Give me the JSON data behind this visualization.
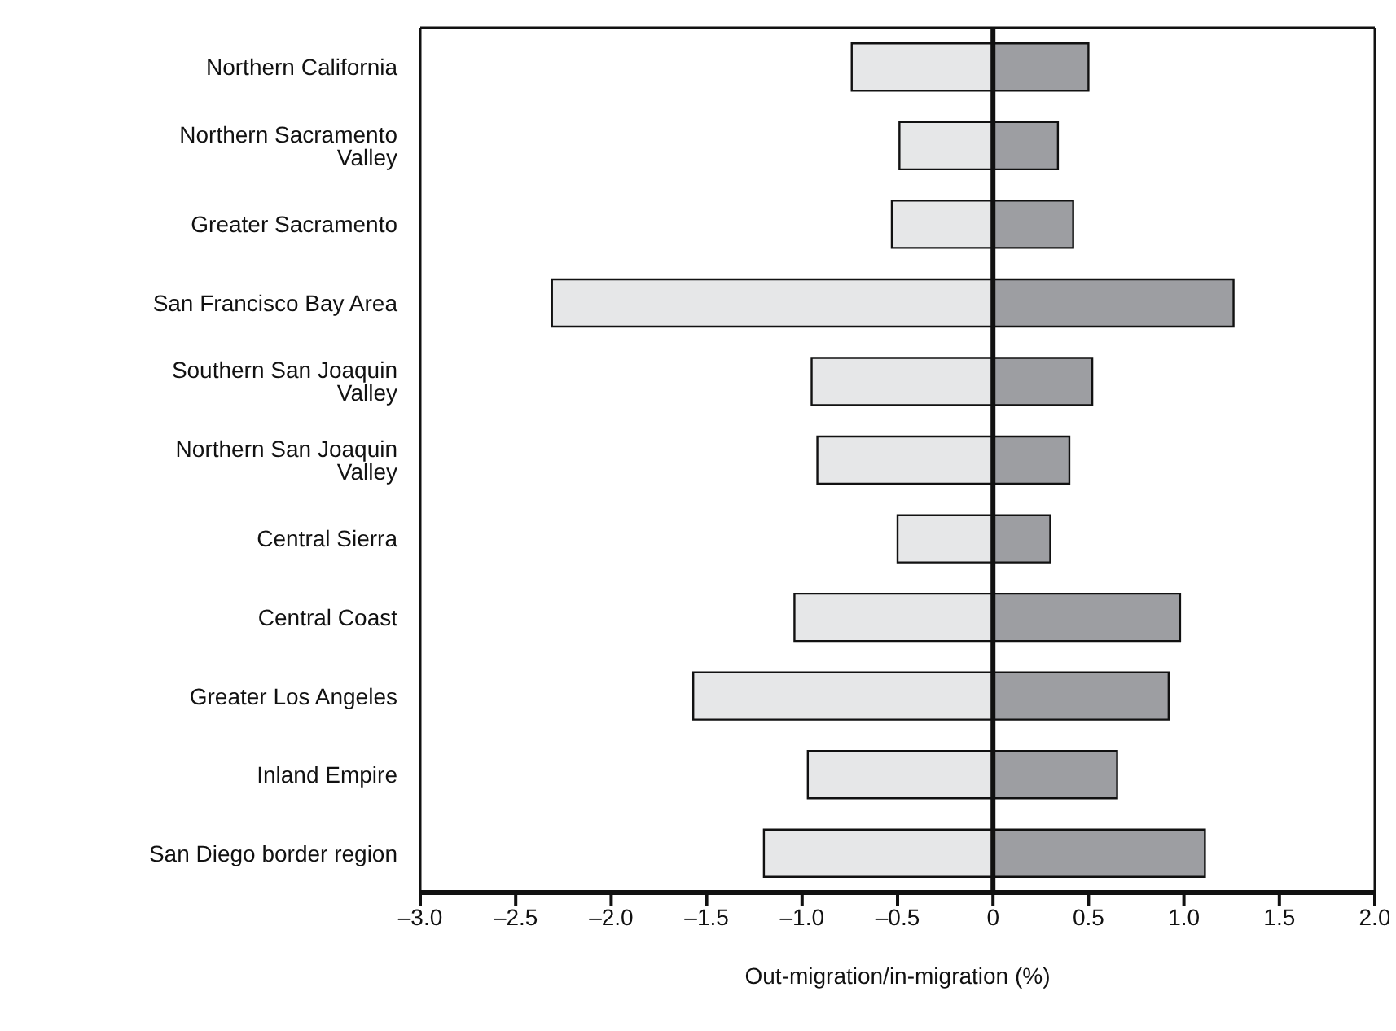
{
  "chart_data": {
    "type": "bar",
    "orientation": "horizontal",
    "stacked": true,
    "xlabel": "Out-migration/in-migration (%)",
    "categories": [
      "Northern California",
      "Northern Sacramento Valley",
      "Greater Sacramento",
      "San Francisco Bay Area",
      "Southern San Joaquin Valley",
      "Northern San Joaquin Valley",
      "Central Sierra",
      "Central Coast",
      "Greater Los Angeles",
      "Inland Empire",
      "San Diego border region"
    ],
    "series": [
      {
        "color": "#e6e7e8",
        "values": [
          -0.74,
          -0.49,
          -0.53,
          -2.31,
          -0.95,
          -0.92,
          -0.5,
          -1.04,
          -1.57,
          -0.97,
          -1.2
        ]
      },
      {
        "color": "#9d9ea2",
        "values": [
          0.5,
          0.34,
          0.42,
          1.26,
          0.52,
          0.4,
          0.3,
          0.98,
          0.92,
          0.65,
          1.11
        ]
      }
    ],
    "xlim": [
      -3,
      2
    ],
    "xticks": [
      {
        "value": -3,
        "label": "–3.0"
      },
      {
        "value": -2.5,
        "label": "–2.5"
      },
      {
        "value": -2,
        "label": "–2.0"
      },
      {
        "value": -1.5,
        "label": "–1.5"
      },
      {
        "value": -1,
        "label": "–1.0"
      },
      {
        "value": -0.5,
        "label": "–0.5"
      },
      0,
      0.5,
      {
        "value": 1,
        "label": "1.0"
      },
      1.5,
      {
        "value": 2,
        "label": "2.0"
      }
    ],
    "ref_lines": [
      {
        "axis": "x",
        "value": 0
      }
    ],
    "grid": false,
    "legend": false
  }
}
